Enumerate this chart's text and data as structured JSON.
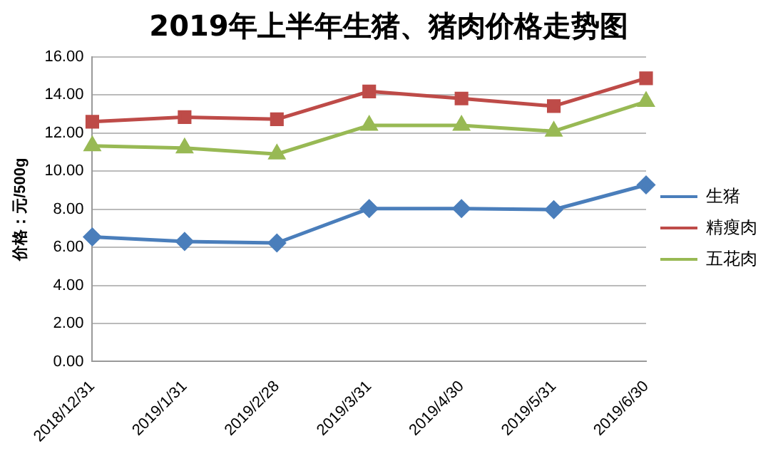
{
  "chart_data": {
    "type": "line",
    "title": "2019年上半年生猪、猪肉价格走势图",
    "ylabel": "价格：元/500g",
    "categories": [
      "2018/12/31",
      "2019/1/31",
      "2019/2/28",
      "2019/3/31",
      "2019/4/30",
      "2019/5/31",
      "2019/6/30"
    ],
    "series": [
      {
        "name": "生猪",
        "color": "#4a7ebb",
        "marker": "diamond",
        "values": [
          6.55,
          6.31,
          6.23,
          8.04,
          8.04,
          7.98,
          9.28
        ]
      },
      {
        "name": "精瘦肉",
        "color": "#be4b48",
        "marker": "square",
        "values": [
          12.6,
          12.84,
          12.73,
          14.19,
          13.82,
          13.42,
          14.88
        ]
      },
      {
        "name": "五花肉",
        "color": "#98b954",
        "marker": "triangle",
        "values": [
          11.33,
          11.22,
          10.9,
          12.41,
          12.41,
          12.1,
          13.66
        ]
      }
    ],
    "ylim": [
      0,
      16
    ],
    "yticks": [
      {
        "value": 0,
        "label": "0.00"
      },
      {
        "value": 2,
        "label": "2.00"
      },
      {
        "value": 4,
        "label": "4.00"
      },
      {
        "value": 6,
        "label": "6.00"
      },
      {
        "value": 8,
        "label": "8.00"
      },
      {
        "value": 10,
        "label": "10.00"
      },
      {
        "value": 12,
        "label": "12.00"
      },
      {
        "value": 14,
        "label": "14.00"
      },
      {
        "value": 16,
        "label": "16.00"
      }
    ],
    "grid": "y",
    "legend": "right"
  }
}
